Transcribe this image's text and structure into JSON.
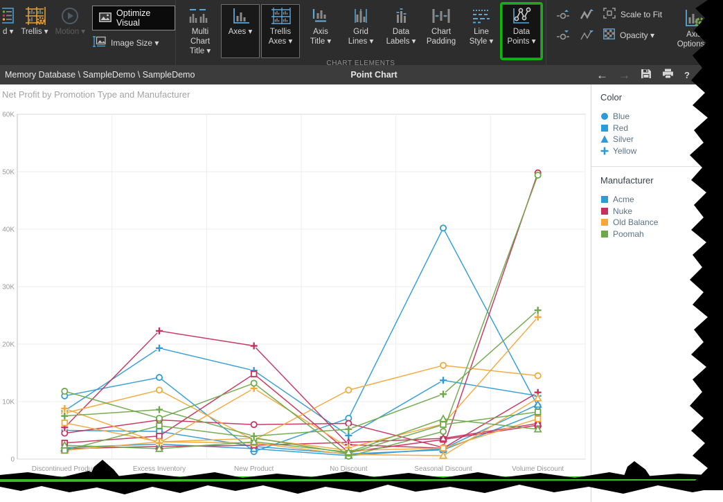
{
  "toolbar": {
    "left_items": {
      "legend_partial_label": "d ▾",
      "trellis_label": "Trellis ▾",
      "motion_label": "Motion ▾",
      "optimize_label": "Optimize Visual",
      "image_size_label": "Image Size ▾"
    },
    "chart_element_items": [
      {
        "id": "multi-chart-title",
        "label": "Multi Chart\nTitle ▾",
        "active": false
      },
      {
        "id": "axes",
        "label": "Axes ▾",
        "active": true
      },
      {
        "id": "trellis-axes",
        "label": "Trellis\nAxes ▾",
        "active": true
      },
      {
        "id": "axis-title",
        "label": "Axis\nTitle ▾",
        "active": false
      },
      {
        "id": "grid-lines",
        "label": "Grid\nLines ▾",
        "active": false
      },
      {
        "id": "data-labels",
        "label": "Data\nLabels ▾",
        "active": false
      },
      {
        "id": "chart-padding",
        "label": "Chart\nPadding",
        "active": false
      },
      {
        "id": "line-style",
        "label": "Line\nStyle ▾",
        "active": false
      },
      {
        "id": "data-points",
        "label": "Data\nPoints ▾",
        "active": true,
        "highlight_color": "#0fb40f"
      }
    ],
    "group_caption": "CHART ELEMENTS",
    "right_items": {
      "scale_to_fit_label": "Scale to Fit",
      "opacity_label": "Opacity  ▾",
      "axis_options_label": "Axis\nOptions ▾"
    }
  },
  "topbar": {
    "breadcrumb": "Memory Database \\ SampleDemo \\ SampleDemo",
    "title": "Point Chart",
    "icons": {
      "back": "←",
      "forward": "→",
      "help": "?"
    }
  },
  "legend_panel": {
    "color_title": "Color",
    "marker_color": "#2e9bd6",
    "color_items": [
      {
        "label": "Blue",
        "marker": "circle"
      },
      {
        "label": "Red",
        "marker": "square"
      },
      {
        "label": "Silver",
        "marker": "triangle"
      },
      {
        "label": "Yellow",
        "marker": "plus"
      }
    ],
    "manufacturer_title": "Manufacturer",
    "manufacturer_items": [
      {
        "label": "Acme",
        "color": "#2e9bd6"
      },
      {
        "label": "Nuke",
        "color": "#c5315d"
      },
      {
        "label": "Old Balance",
        "color": "#f3a83a"
      },
      {
        "label": "Poomah",
        "color": "#6fa84b"
      }
    ]
  },
  "chart_data": {
    "type": "line",
    "title": "Net Profit by Promotion Type and Manufacturer",
    "xlabel": "",
    "ylabel": "",
    "ylim": [
      0,
      60000
    ],
    "y_tick_labels": [
      "60K",
      "50K",
      "40K",
      "30K",
      "20K",
      "10K",
      "0"
    ],
    "grid": true,
    "legend_position": "right-panel",
    "categories": [
      "Discontinued Product",
      "Excess Inventory",
      "New Product",
      "No Discount",
      "Seasonal Discount",
      "Volume Discount"
    ],
    "marker_by_color_attr": {
      "Blue": "circle",
      "Red": "square",
      "Silver": "triangle",
      "Yellow": "plus"
    },
    "line_color_by_manufacturer": {
      "Acme": "#2e9bd6",
      "Nuke": "#c5315d",
      "Old Balance": "#f3a83a",
      "Poomah": "#6fa84b"
    },
    "series": [
      {
        "name": "Acme / Blue",
        "manufacturer": "Acme",
        "color_attr": "Blue",
        "marker": "circle",
        "stroke": "#2e9bd6",
        "values_k": [
          11.0,
          14.2,
          1.3,
          7.1,
          40.2,
          9.2
        ]
      },
      {
        "name": "Acme / Red",
        "manufacturer": "Acme",
        "color_attr": "Red",
        "marker": "square",
        "stroke": "#2e9bd6",
        "values_k": [
          5.0,
          4.8,
          2.2,
          0.9,
          1.6,
          8.0
        ]
      },
      {
        "name": "Acme / Silver",
        "manufacturer": "Acme",
        "color_attr": "Silver",
        "marker": "triangle",
        "stroke": "#2e9bd6",
        "values_k": [
          2.0,
          2.6,
          1.8,
          0.6,
          1.8,
          9.5
        ]
      },
      {
        "name": "Acme / Yellow",
        "manufacturer": "Acme",
        "color_attr": "Yellow",
        "marker": "plus",
        "stroke": "#2e9bd6",
        "values_k": [
          8.4,
          19.3,
          15.4,
          4.1,
          13.7,
          11.0
        ]
      },
      {
        "name": "Nuke / Blue",
        "manufacturer": "Nuke",
        "color_attr": "Blue",
        "marker": "circle",
        "stroke": "#c5315d",
        "values_k": [
          4.5,
          6.8,
          6.0,
          6.2,
          2.0,
          49.8
        ]
      },
      {
        "name": "Nuke / Red",
        "manufacturer": "Nuke",
        "color_attr": "Red",
        "marker": "square",
        "stroke": "#c5315d",
        "values_k": [
          2.8,
          4.0,
          14.8,
          1.2,
          3.4,
          5.9
        ]
      },
      {
        "name": "Nuke / Silver",
        "manufacturer": "Nuke",
        "color_attr": "Silver",
        "marker": "triangle",
        "stroke": "#c5315d",
        "values_k": [
          1.8,
          2.2,
          2.4,
          2.9,
          3.6,
          6.2
        ]
      },
      {
        "name": "Nuke / Yellow",
        "manufacturer": "Nuke",
        "color_attr": "Yellow",
        "marker": "plus",
        "stroke": "#c5315d",
        "values_k": [
          5.5,
          22.3,
          19.7,
          2.5,
          1.9,
          11.6
        ]
      },
      {
        "name": "Old Balance / Blue",
        "manufacturer": "Old Balance",
        "color_attr": "Blue",
        "marker": "circle",
        "stroke": "#f3a83a",
        "values_k": [
          8.0,
          12.0,
          3.3,
          12.0,
          16.3,
          14.5
        ]
      },
      {
        "name": "Old Balance / Red",
        "manufacturer": "Old Balance",
        "color_attr": "Red",
        "marker": "square",
        "stroke": "#f3a83a",
        "values_k": [
          6.3,
          3.0,
          3.6,
          1.5,
          1.9,
          7.0
        ]
      },
      {
        "name": "Old Balance / Silver",
        "manufacturer": "Old Balance",
        "color_attr": "Silver",
        "marker": "triangle",
        "stroke": "#f3a83a",
        "values_k": [
          1.5,
          3.0,
          2.8,
          0.8,
          0.6,
          10.6
        ]
      },
      {
        "name": "Old Balance / Yellow",
        "manufacturer": "Old Balance",
        "color_attr": "Yellow",
        "marker": "plus",
        "stroke": "#f3a83a",
        "values_k": [
          8.8,
          2.8,
          12.3,
          2.0,
          6.1,
          24.7
        ]
      },
      {
        "name": "Poomah / Blue",
        "manufacturer": "Poomah",
        "color_attr": "Blue",
        "marker": "circle",
        "stroke": "#6fa84b",
        "values_k": [
          11.8,
          7.1,
          13.2,
          0.5,
          4.8,
          49.4
        ]
      },
      {
        "name": "Poomah / Red",
        "manufacturer": "Poomah",
        "color_attr": "Red",
        "marker": "square",
        "stroke": "#6fa84b",
        "values_k": [
          1.5,
          5.8,
          3.7,
          1.0,
          6.0,
          8.2
        ]
      },
      {
        "name": "Poomah / Silver",
        "manufacturer": "Poomah",
        "color_attr": "Silver",
        "marker": "triangle",
        "stroke": "#6fa84b",
        "values_k": [
          2.4,
          1.8,
          3.0,
          1.2,
          7.0,
          5.2
        ]
      },
      {
        "name": "Poomah / Yellow",
        "manufacturer": "Poomah",
        "color_attr": "Yellow",
        "marker": "plus",
        "stroke": "#6fa84b",
        "values_k": [
          7.5,
          8.6,
          4.0,
          5.2,
          11.3,
          25.9
        ]
      }
    ]
  }
}
